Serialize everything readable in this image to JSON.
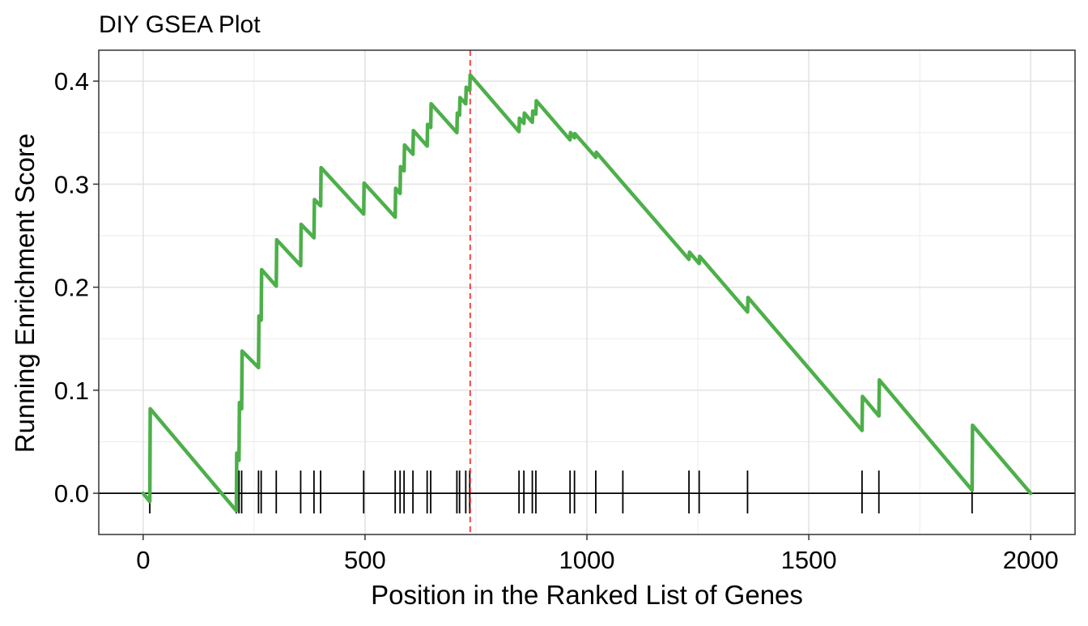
{
  "chart_data": {
    "type": "line",
    "title": "DIY GSEA Plot",
    "xlabel": "Position in the Ranked List of Genes",
    "ylabel": "Running Enrichment Score",
    "xlim": [
      -100,
      2100
    ],
    "ylim": [
      -0.04,
      0.43
    ],
    "x_ticks": [
      0,
      500,
      1000,
      1500,
      2000
    ],
    "x_tick_labels": [
      "0",
      "500",
      "1000",
      "1500",
      "2000"
    ],
    "y_ticks": [
      0.0,
      0.1,
      0.2,
      0.3,
      0.4
    ],
    "y_tick_labels": [
      "0.0",
      "0.1",
      "0.2",
      "0.3",
      "0.4"
    ],
    "grid": true,
    "series": [
      {
        "color": "#4daf4a",
        "points": [
          [
            0,
            0.0
          ],
          [
            15,
            -0.008
          ],
          [
            16,
            0.082
          ],
          [
            210,
            -0.017
          ],
          [
            211,
            0.039
          ],
          [
            216,
            0.032
          ],
          [
            217,
            0.088
          ],
          [
            222,
            0.082
          ],
          [
            223,
            0.138
          ],
          [
            260,
            0.122
          ],
          [
            261,
            0.172
          ],
          [
            266,
            0.168
          ],
          [
            267,
            0.217
          ],
          [
            300,
            0.201
          ],
          [
            301,
            0.246
          ],
          [
            355,
            0.221
          ],
          [
            356,
            0.261
          ],
          [
            385,
            0.248
          ],
          [
            386,
            0.285
          ],
          [
            400,
            0.279
          ],
          [
            401,
            0.316
          ],
          [
            497,
            0.271
          ],
          [
            498,
            0.301
          ],
          [
            568,
            0.268
          ],
          [
            569,
            0.296
          ],
          [
            579,
            0.291
          ],
          [
            580,
            0.317
          ],
          [
            588,
            0.313
          ],
          [
            589,
            0.338
          ],
          [
            608,
            0.329
          ],
          [
            609,
            0.352
          ],
          [
            640,
            0.337
          ],
          [
            641,
            0.358
          ],
          [
            648,
            0.355
          ],
          [
            649,
            0.378
          ],
          [
            707,
            0.35
          ],
          [
            708,
            0.369
          ],
          [
            713,
            0.367
          ],
          [
            714,
            0.384
          ],
          [
            727,
            0.378
          ],
          [
            728,
            0.394
          ],
          [
            736,
            0.391
          ],
          [
            737,
            0.406
          ],
          [
            847,
            0.351
          ],
          [
            848,
            0.364
          ],
          [
            858,
            0.359
          ],
          [
            859,
            0.369
          ],
          [
            877,
            0.36
          ],
          [
            878,
            0.371
          ],
          [
            885,
            0.368
          ],
          [
            886,
            0.381
          ],
          [
            962,
            0.343
          ],
          [
            963,
            0.35
          ],
          [
            972,
            0.345
          ],
          [
            973,
            0.349
          ],
          [
            1020,
            0.326
          ],
          [
            1021,
            0.331
          ],
          [
            1081,
            0.301
          ],
          [
            1230,
            0.227
          ],
          [
            1231,
            0.234
          ],
          [
            1253,
            0.223
          ],
          [
            1254,
            0.23
          ],
          [
            1362,
            0.176
          ],
          [
            1363,
            0.19
          ],
          [
            1620,
            0.061
          ],
          [
            1621,
            0.094
          ],
          [
            1658,
            0.075
          ],
          [
            1659,
            0.11
          ],
          [
            1868,
            0.003
          ],
          [
            1869,
            0.066
          ],
          [
            2000,
            0.0
          ]
        ]
      }
    ],
    "gene_hits": [
      15,
      210,
      216,
      222,
      260,
      266,
      300,
      355,
      385,
      400,
      497,
      568,
      579,
      588,
      608,
      640,
      648,
      707,
      713,
      727,
      736,
      847,
      858,
      877,
      885,
      962,
      972,
      1020,
      1081,
      1230,
      1253,
      1362,
      1620,
      1658,
      1868
    ],
    "max_es_position": 737,
    "max_es_line_color": "#ff0000",
    "zero_line_color": "#000000"
  }
}
